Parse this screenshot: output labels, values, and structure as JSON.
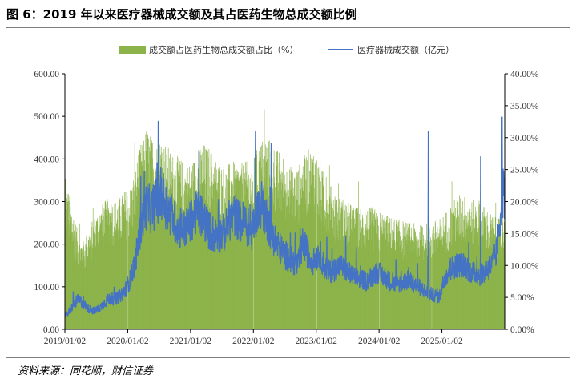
{
  "title": "图 6：2019 年以来医疗器械成交额及其占医药生物总成交额比例",
  "source": "资料来源：同花顺，财信证券",
  "colors": {
    "bar": "#8db34b",
    "line": "#4472c4",
    "axis": "#000000"
  },
  "chart_data": {
    "type": "bar+line",
    "legend": [
      "成交额占医药生物总成交额占比（%）",
      "医疗器械成交额（亿元）"
    ],
    "legend_position": "top",
    "grid": false,
    "left_axis": {
      "ticks": [
        "0.00",
        "100.00",
        "200.00",
        "300.00",
        "400.00",
        "500.00",
        "600.00"
      ],
      "ylim": [
        0,
        600
      ]
    },
    "right_axis": {
      "ticks": [
        "0.00%",
        "5.00%",
        "10.00%",
        "15.00%",
        "20.00%",
        "25.00%",
        "30.00%",
        "35.00%",
        "40.00%"
      ],
      "ylim": [
        0,
        40
      ]
    },
    "x_ticks": [
      "2019/01/02",
      "2020/01/02",
      "2021/01/02",
      "2022/01/02",
      "2023/01/02",
      "2024/01/02",
      "2025/01/02"
    ],
    "x_range": [
      "2019/01/02",
      "2025/09"
    ],
    "series_ratio_monthly_avg_pct": [
      19.5,
      16.5,
      13.2,
      12.2,
      13.8,
      15.5,
      16.7,
      17.6,
      18.3,
      17.8,
      18.3,
      19.2,
      19.8,
      22.5,
      25.7,
      27.8,
      26.8,
      25.8,
      26.8,
      25.3,
      24.3,
      23.8,
      23.2,
      22.8,
      23.4,
      24.6,
      25.6,
      25.2,
      23.9,
      22.9,
      22.4,
      22.9,
      23.2,
      22.8,
      23.1,
      22.9,
      24.6,
      26.2,
      26.7,
      25.8,
      24.8,
      23.9,
      22.7,
      22.2,
      22.4,
      23.9,
      24.8,
      25.4,
      23.1,
      21.2,
      20.2,
      19.2,
      18.4,
      17.7,
      17.3,
      16.9,
      16.8,
      16.8,
      16.8,
      16.5,
      16.2,
      15.7,
      15.4,
      15.2,
      15.0,
      14.8,
      14.6,
      14.4,
      14.4,
      14.7,
      15.0,
      15.2,
      16.1,
      17.2,
      18.1,
      18.8,
      18.4,
      17.8,
      17.7,
      17.4,
      16.7,
      15.8,
      15.2,
      15.4
    ],
    "series_amount_monthly_avg": [
      35,
      55,
      70,
      60,
      48,
      44,
      48,
      62,
      72,
      70,
      78,
      92,
      118,
      165,
      245,
      290,
      280,
      300,
      320,
      285,
      265,
      240,
      232,
      242,
      265,
      272,
      262,
      232,
      222,
      222,
      228,
      258,
      268,
      252,
      252,
      222,
      268,
      298,
      262,
      225,
      200,
      182,
      170,
      160,
      150,
      205,
      172,
      158,
      182,
      148,
      135,
      140,
      150,
      140,
      130,
      120,
      118,
      112,
      122,
      135,
      128,
      118,
      108,
      105,
      110,
      115,
      108,
      100,
      92,
      84,
      80,
      76,
      122,
      138,
      150,
      152,
      148,
      135,
      130,
      126,
      140,
      150,
      185,
      320
    ],
    "spikes": [
      {
        "date": "2022/01",
        "amount": 465
      },
      {
        "date": "2022/04",
        "amount": 437
      },
      {
        "date": "2024/10",
        "amount": 465
      },
      {
        "date": "2025/08",
        "amount": 405
      }
    ]
  }
}
